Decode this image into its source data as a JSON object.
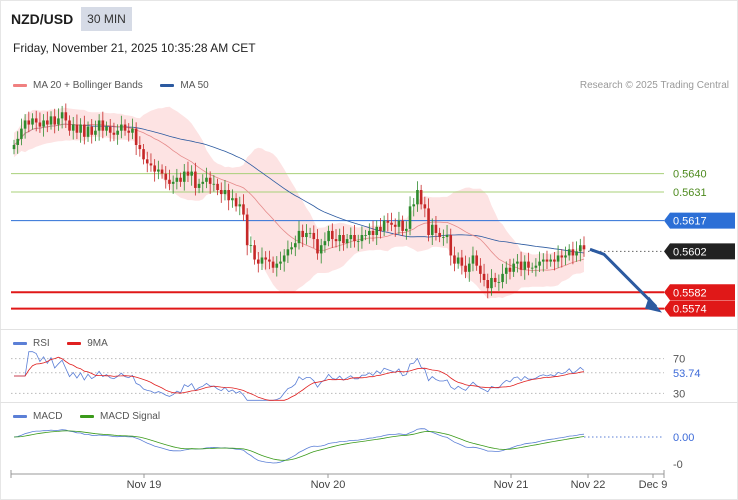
{
  "header": {
    "pair": "NZD/USD",
    "timeframe": "30 MIN",
    "datetime": "Friday, November 21, 2025 10:35:28 AM CET",
    "credit": "Research © 2025 Trading Central"
  },
  "legend": {
    "main": [
      {
        "label": "MA 20 + Bollinger Bands",
        "color": "#f08080"
      },
      {
        "label": "MA 50",
        "color": "#2c5aa0"
      }
    ],
    "rsi": [
      {
        "label": "RSI",
        "color": "#5b7fd6"
      },
      {
        "label": "9MA",
        "color": "#e02020"
      }
    ],
    "macd": [
      {
        "label": "MACD",
        "color": "#5b7fd6"
      },
      {
        "label": "MACD Signal",
        "color": "#3a9a1a"
      }
    ]
  },
  "colors": {
    "up": "#2e8b2e",
    "down": "#c62828",
    "band": "#fde3e3",
    "resistance": "#a8d07a",
    "pivot": "#2c6fd6",
    "support": "#e01818",
    "arrow": "#2c5aa0"
  },
  "chart_data": [
    {
      "type": "candlestick",
      "x_labels": [
        "Nov 19",
        "Nov 20",
        "Nov 21",
        "Nov 22",
        "Dec 9"
      ],
      "ylim": [
        0.5566,
        0.5676
      ],
      "levels": [
        {
          "value": "0.5640",
          "kind": "resistance"
        },
        {
          "value": "0.5631",
          "kind": "resistance"
        },
        {
          "value": "0.5617",
          "kind": "pivot"
        },
        {
          "value": "0.5602",
          "kind": "current"
        },
        {
          "value": "0.5582",
          "kind": "support"
        },
        {
          "value": "0.5574",
          "kind": "support"
        }
      ],
      "close": [
        0.5654,
        0.5657,
        0.5662,
        0.5666,
        0.5664,
        0.5667,
        0.5665,
        0.5663,
        0.5666,
        0.5664,
        0.5668,
        0.5664,
        0.5667,
        0.567,
        0.5666,
        0.5661,
        0.5664,
        0.566,
        0.5664,
        0.5658,
        0.5663,
        0.5659,
        0.5661,
        0.5666,
        0.5661,
        0.5663,
        0.566,
        0.5659,
        0.5661,
        0.5664,
        0.5661,
        0.566,
        0.5662,
        0.5654,
        0.5652,
        0.5647,
        0.5645,
        0.5644,
        0.5641,
        0.5642,
        0.564,
        0.5637,
        0.5635,
        0.5636,
        0.5638,
        0.5636,
        0.5641,
        0.5639,
        0.5641,
        0.5633,
        0.5635,
        0.5636,
        0.5638,
        0.5635,
        0.5635,
        0.5632,
        0.563,
        0.5632,
        0.5627,
        0.5628,
        0.5624,
        0.5625,
        0.562,
        0.5605,
        0.5605,
        0.5598,
        0.5596,
        0.5599,
        0.5598,
        0.5597,
        0.5594,
        0.5596,
        0.5597,
        0.56,
        0.5603,
        0.5604,
        0.5606,
        0.5612,
        0.5609,
        0.5611,
        0.5611,
        0.5608,
        0.5601,
        0.5605,
        0.5607,
        0.5612,
        0.5608,
        0.5607,
        0.561,
        0.5606,
        0.5608,
        0.561,
        0.5607,
        0.5607,
        0.561,
        0.561,
        0.5612,
        0.561,
        0.5614,
        0.5612,
        0.5617,
        0.5616,
        0.5615,
        0.5614,
        0.5617,
        0.5612,
        0.5613,
        0.5624,
        0.5625,
        0.5632,
        0.5625,
        0.5623,
        0.561,
        0.5615,
        0.5611,
        0.5609,
        0.5609,
        0.561,
        0.56,
        0.5596,
        0.5599,
        0.5595,
        0.5592,
        0.5596,
        0.56,
        0.5595,
        0.5591,
        0.5588,
        0.5584,
        0.5589,
        0.5587,
        0.5587,
        0.5591,
        0.5594,
        0.5592,
        0.5596,
        0.5597,
        0.5593,
        0.5597,
        0.5594,
        0.5594,
        0.5595,
        0.5597,
        0.5598,
        0.5597,
        0.5598,
        0.5597,
        0.56,
        0.5599,
        0.56,
        0.5603,
        0.56,
        0.5602,
        0.5605,
        0.5603
      ]
    },
    {
      "type": "line",
      "name": "RSI",
      "levels": [
        "70",
        "53.74",
        "30"
      ],
      "ylim": [
        20,
        80
      ]
    },
    {
      "type": "line",
      "name": "MACD",
      "levels": [
        "0.00",
        "-0"
      ]
    }
  ]
}
